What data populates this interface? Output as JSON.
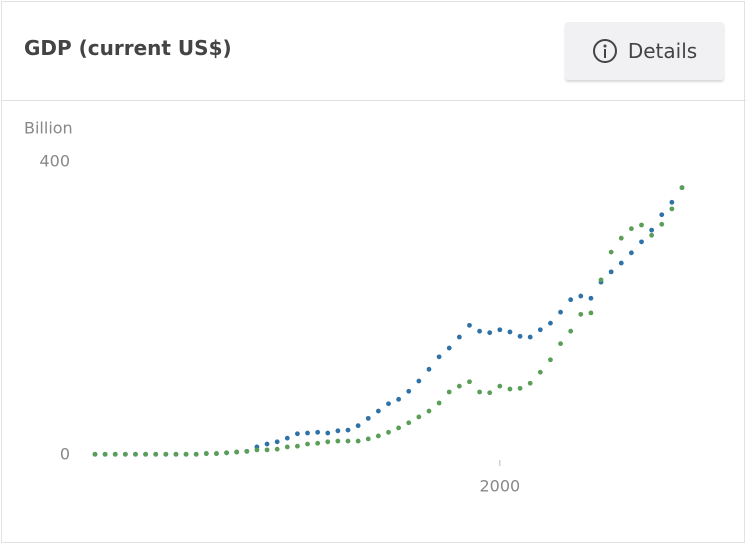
{
  "header": {
    "title": "GDP (current US$)",
    "button": "Details"
  },
  "chart_data": {
    "type": "scatter",
    "y_label": "Billion",
    "x": [
      1960,
      1961,
      1962,
      1963,
      1964,
      1965,
      1966,
      1967,
      1968,
      1969,
      1970,
      1971,
      1972,
      1973,
      1974,
      1975,
      1976,
      1977,
      1978,
      1979,
      1980,
      1981,
      1982,
      1983,
      1984,
      1985,
      1986,
      1987,
      1988,
      1989,
      1990,
      1991,
      1992,
      1993,
      1994,
      1995,
      1996,
      1997,
      1998,
      1999,
      2000,
      2001,
      2002,
      2003,
      2004,
      2005,
      2006,
      2007,
      2008,
      2009,
      2010,
      2011,
      2012,
      2013,
      2014,
      2015,
      2016,
      2017,
      2018
    ],
    "series": [
      {
        "color": "#2f72a8",
        "values": [
          1,
          1,
          1,
          1,
          1,
          1,
          1,
          1,
          1,
          1,
          1,
          2,
          2,
          3,
          4,
          5,
          11,
          15,
          18,
          23,
          29,
          30,
          31,
          30,
          33,
          34,
          40,
          50,
          60,
          70,
          76,
          87,
          101,
          117,
          134,
          146,
          161,
          177,
          169,
          167,
          171,
          168,
          162,
          161,
          171,
          180,
          195,
          212,
          217,
          214,
          236,
          250,
          262,
          276,
          291,
          307,
          328,
          345,
          365
        ]
      },
      {
        "color": "#5a9e57",
        "values": [
          1,
          1,
          1,
          1,
          1,
          1,
          1,
          1,
          1,
          1,
          1,
          2,
          2,
          3,
          4,
          5,
          7,
          7,
          8,
          11,
          12,
          15,
          16,
          18,
          19,
          19,
          19,
          22,
          26,
          31,
          37,
          44,
          52,
          60,
          71,
          86,
          94,
          100,
          86,
          85,
          94,
          90,
          91,
          98,
          113,
          130,
          152,
          169,
          192,
          194,
          239,
          277,
          296,
          309,
          314,
          300,
          315,
          336,
          365
        ]
      }
    ],
    "xlim": [
      1960,
      2018
    ],
    "xticks": [
      2000
    ],
    "ylim": [
      0,
      400
    ],
    "yticks": [
      0,
      400
    ]
  }
}
